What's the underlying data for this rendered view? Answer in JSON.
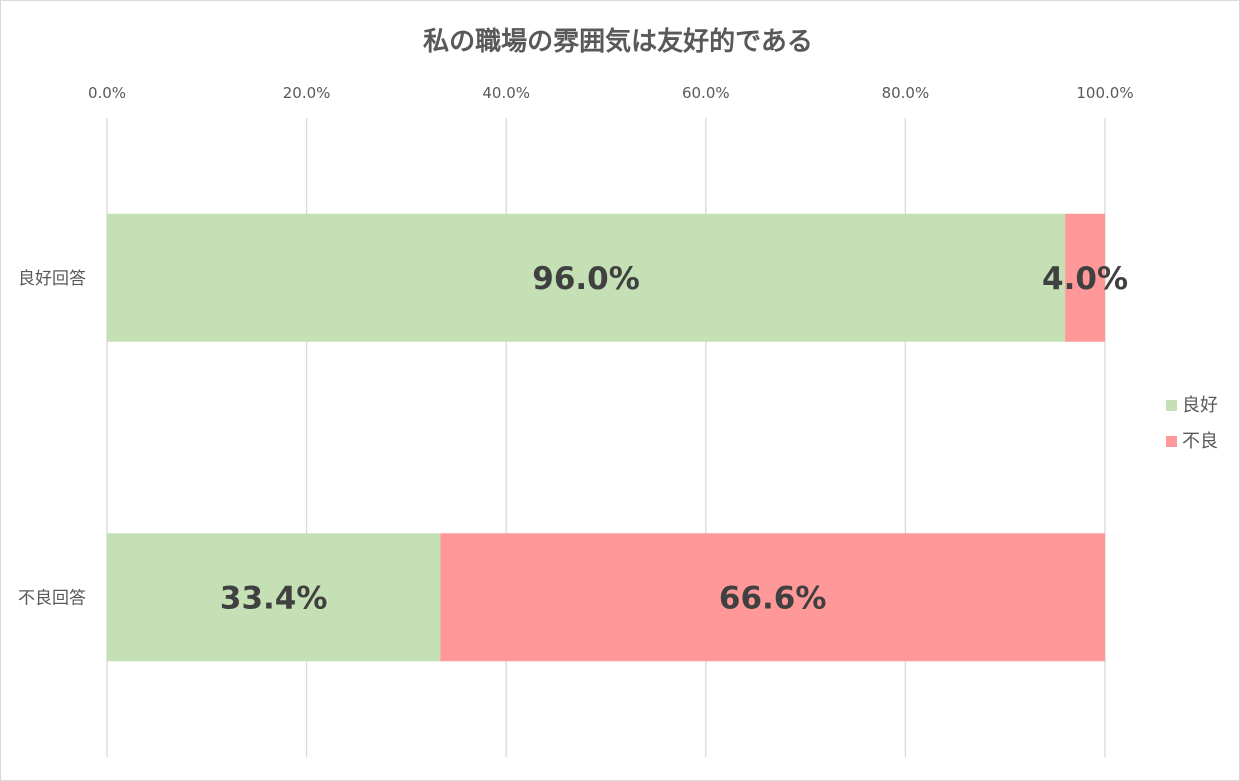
{
  "chart_data": {
    "type": "bar",
    "orientation": "horizontal",
    "stacked": "percent",
    "title": "私の職場の雰囲気は友好的である",
    "categories": [
      "良好回答",
      "不良回答"
    ],
    "series": [
      {
        "name": "良好",
        "values": [
          96.0,
          33.4
        ],
        "color": "#c5e0b4"
      },
      {
        "name": "不良",
        "values": [
          4.0,
          66.6
        ],
        "color": "#ff9999"
      }
    ],
    "data_labels": [
      [
        "96.0%",
        "33.4%"
      ],
      [
        "4.0%",
        "66.6%"
      ]
    ],
    "xlim": [
      0,
      100
    ],
    "xticks": [
      "0.0%",
      "20.0%",
      "40.0%",
      "60.0%",
      "80.0%",
      "100.0%"
    ],
    "axis_position": "top",
    "grid": true,
    "legend": "right",
    "xlabel": "",
    "ylabel": ""
  }
}
